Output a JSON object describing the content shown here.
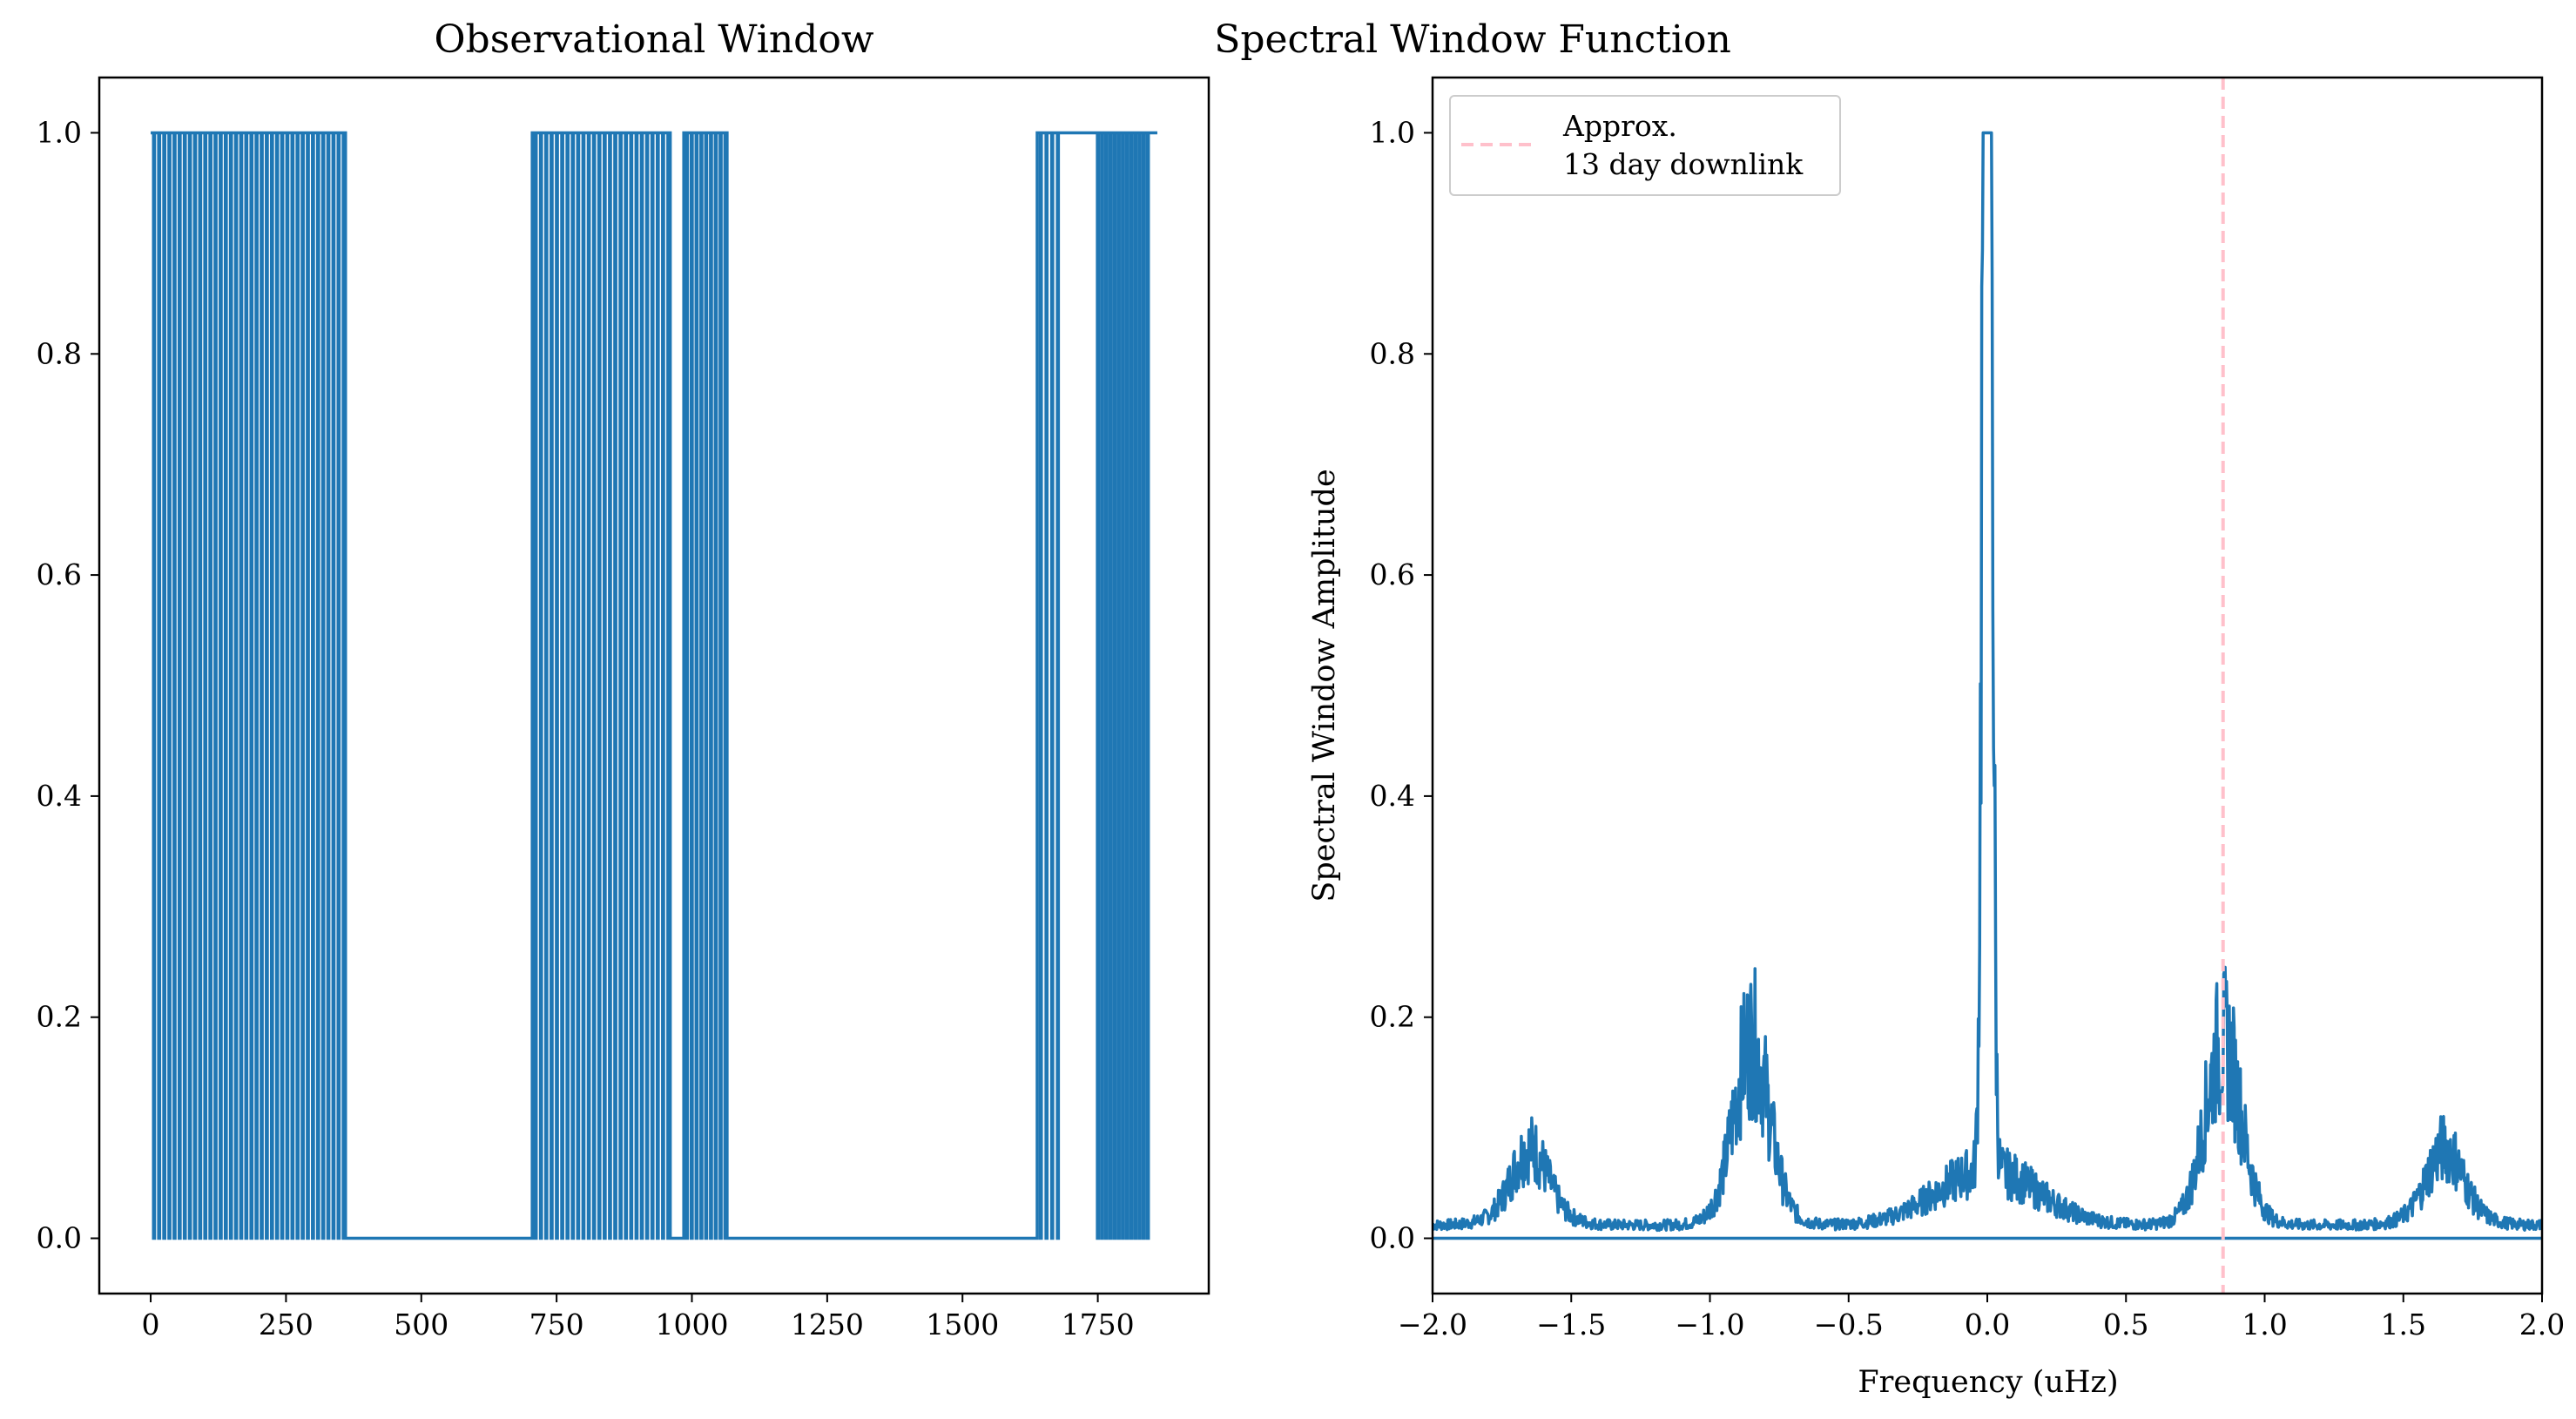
{
  "chart_data": [
    {
      "type": "line",
      "title": "Observational Window",
      "xlabel": "",
      "ylabel": "",
      "xlim": [
        -95,
        1955
      ],
      "ylim": [
        -0.05,
        1.05
      ],
      "xticks": [
        0,
        250,
        500,
        750,
        1000,
        1250,
        1500,
        1750
      ],
      "yticks": [
        0.0,
        0.2,
        0.4,
        0.6,
        0.8,
        1.0
      ],
      "xtick_labels": [
        "0",
        "250",
        "500",
        "750",
        "1000",
        "1250",
        "1500",
        "1750"
      ],
      "ytick_labels": [
        "0.0",
        "0.2",
        "0.4",
        "0.6",
        "0.8",
        "1.0"
      ],
      "grid": false,
      "series_color": "#1f77b4",
      "segments": [
        {
          "start": 0,
          "end": 360,
          "state": "dense-gaps",
          "gap_count": 38
        },
        {
          "start": 360,
          "end": 705,
          "state": "off"
        },
        {
          "start": 705,
          "end": 960,
          "state": "dense-gaps",
          "gap_count": 26
        },
        {
          "start": 960,
          "end": 985,
          "state": "off"
        },
        {
          "start": 985,
          "end": 1065,
          "state": "dense-gaps",
          "gap_count": 9
        },
        {
          "start": 1065,
          "end": 1638,
          "state": "off"
        },
        {
          "start": 1638,
          "end": 1680,
          "state": "dense-gaps",
          "gap_count": 4
        },
        {
          "start": 1680,
          "end": 1745,
          "state": "on"
        },
        {
          "start": 1745,
          "end": 1845,
          "state": "dense-gaps",
          "gap_count": 13
        },
        {
          "start": 1845,
          "end": 1860,
          "state": "on"
        }
      ]
    },
    {
      "type": "line",
      "title": "Spectral Window Function",
      "xlabel": "Frequency (uHz)",
      "ylabel": "Spectral Window Amplitude",
      "xlim": [
        -2.0,
        2.0
      ],
      "ylim": [
        -0.05,
        1.05
      ],
      "xticks": [
        -2.0,
        -1.5,
        -1.0,
        -0.5,
        0.0,
        0.5,
        1.0,
        1.5,
        2.0
      ],
      "yticks": [
        0.0,
        0.2,
        0.4,
        0.6,
        0.8,
        1.0
      ],
      "xtick_labels": [
        "−2.0",
        "−1.5",
        "−1.0",
        "−0.5",
        "0.0",
        "0.5",
        "1.0",
        "1.5",
        "2.0"
      ],
      "ytick_labels": [
        "0.0",
        "0.2",
        "0.4",
        "0.6",
        "0.8",
        "1.0"
      ],
      "grid": false,
      "series_color": "#1f77b4",
      "baseline": 0.0,
      "peaks": [
        {
          "x": 0.0,
          "y": 1.0
        },
        {
          "x": -0.01,
          "y": 0.55
        },
        {
          "x": 0.01,
          "y": 0.55
        },
        {
          "x": -0.85,
          "y": 0.145
        },
        {
          "x": 0.85,
          "y": 0.145
        },
        {
          "x": -1.65,
          "y": 0.055
        },
        {
          "x": 1.65,
          "y": 0.055
        }
      ],
      "noise_floor": 0.012,
      "reference_line": {
        "x": 0.85,
        "color": "#ffc0cb",
        "style": "dashed"
      },
      "legend": {
        "placement": "upper-left",
        "entries": [
          {
            "label_line1": "Approx.",
            "label_line2": "13 day downlink",
            "color": "#ffc0cb",
            "style": "dashed"
          }
        ]
      }
    }
  ]
}
